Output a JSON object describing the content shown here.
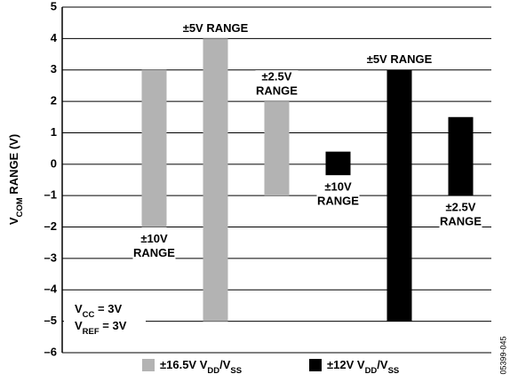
{
  "chart_data": {
    "type": "range_bar",
    "y_axis_label": "VCOM RANGE (V)",
    "ylim": [
      -6,
      5
    ],
    "yticks": [
      {
        "value": -6,
        "label": "–6"
      },
      {
        "value": -5,
        "label": "–5"
      },
      {
        "value": -4,
        "label": "–4"
      },
      {
        "value": -3,
        "label": "–3"
      },
      {
        "value": -2,
        "label": "–2"
      },
      {
        "value": -1,
        "label": "–1"
      },
      0,
      1,
      2,
      3,
      4,
      5
    ],
    "grid": true,
    "series": [
      {
        "name": "±16.5V VDD/VSS",
        "color": "#b3b3b3",
        "low": [
          -2,
          -5,
          -1
        ],
        "high": [
          3,
          4,
          2
        ],
        "range_labels": [
          [
            "±10V",
            "RANGE"
          ],
          [
            "±5V RANGE"
          ],
          [
            "±2.5V",
            "RANGE"
          ]
        ],
        "label_position": [
          "below",
          "above",
          "above"
        ]
      },
      {
        "name": "±12V VDD/VSS",
        "color": "#000000",
        "low": [
          -0.35,
          -5,
          -1
        ],
        "high": [
          0.4,
          3,
          1.5
        ],
        "range_labels": [
          [
            "±10V",
            "RANGE"
          ],
          [
            "±5V RANGE"
          ],
          [
            "±2.5V",
            "RANGE"
          ]
        ],
        "label_position": [
          "below",
          "above",
          "below"
        ]
      }
    ],
    "annotations": [
      "VCC = 3V",
      "VREF = 3V"
    ],
    "figure_id": "05399-045"
  }
}
